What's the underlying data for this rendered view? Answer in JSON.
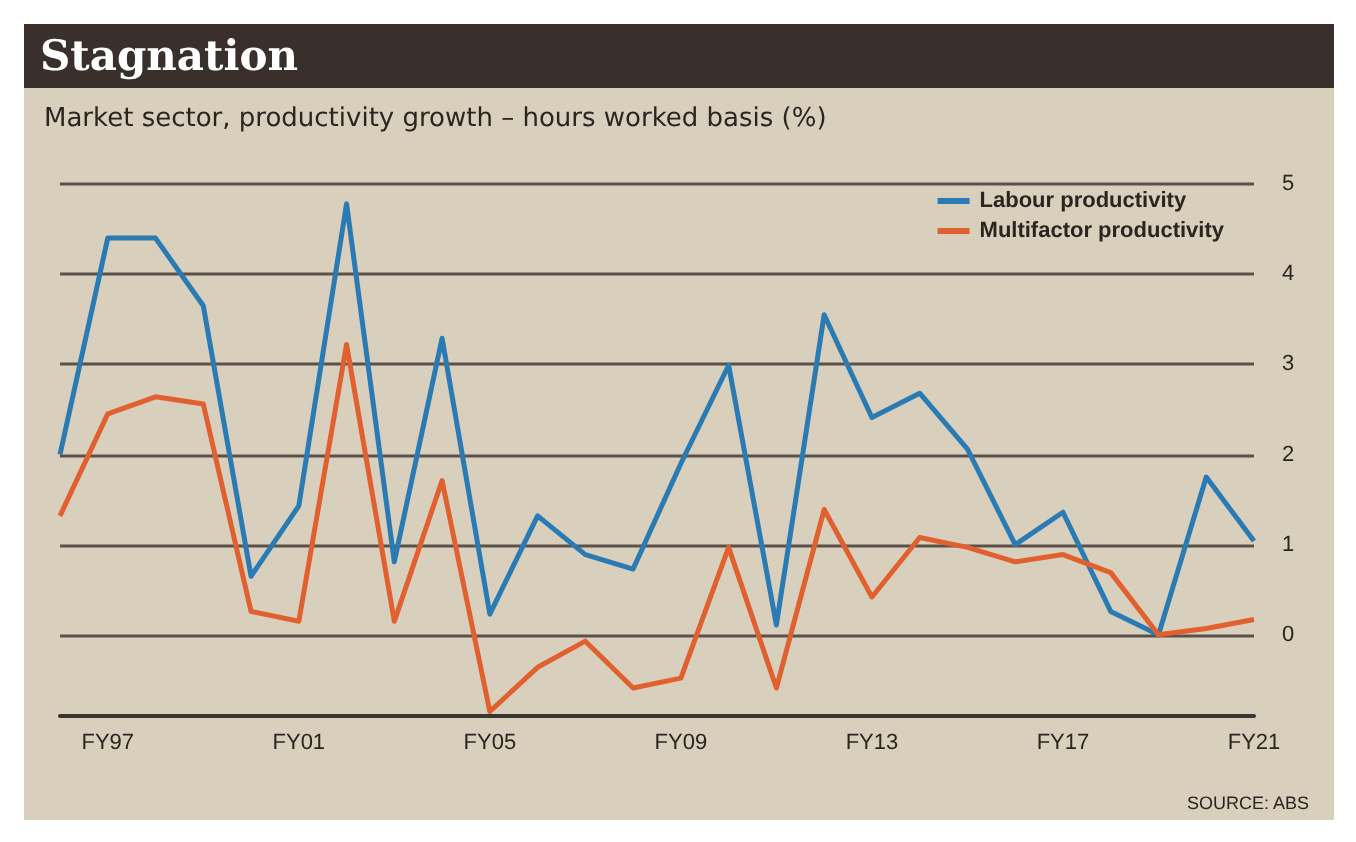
{
  "chart_data": {
    "type": "line",
    "title": "Stagnation",
    "subtitle": "Market sector, productivity growth – hours worked basis (%)",
    "categories": [
      null,
      "FY97",
      null,
      null,
      null,
      "FY01",
      null,
      null,
      null,
      "FY05",
      null,
      null,
      null,
      "FY09",
      null,
      null,
      null,
      "FY13",
      null,
      null,
      null,
      "FY17",
      null,
      null,
      null,
      "FY21"
    ],
    "series": [
      {
        "name": "Labour productivity",
        "color": "#2a7bb3",
        "values": [
          2.0,
          4.4,
          4.4,
          3.65,
          0.65,
          1.43,
          4.78,
          0.81,
          3.29,
          0.23,
          1.32,
          0.89,
          0.73,
          1.9,
          2.99,
          0.11,
          3.55,
          2.41,
          2.68,
          2.06,
          1.0,
          1.36,
          0.26,
          0.0,
          1.75,
          1.04
        ]
      },
      {
        "name": "Multifactor productivity",
        "color": "#e0602f",
        "values": [
          1.32,
          2.45,
          2.64,
          2.56,
          0.26,
          0.15,
          3.22,
          0.15,
          1.71,
          -0.85,
          -0.36,
          -0.07,
          -0.59,
          -0.48,
          0.97,
          -0.59,
          1.39,
          0.42,
          1.08,
          0.97,
          0.81,
          0.89,
          0.69,
          0.0,
          0.07,
          0.17
        ]
      }
    ],
    "ylim": [
      -0.9,
      5
    ],
    "yticks": [
      0,
      1,
      2,
      3,
      4,
      5
    ],
    "grid": "y",
    "legend": "top right",
    "marker": "none",
    "annotations": [
      "SOURCE: ABS"
    ]
  }
}
